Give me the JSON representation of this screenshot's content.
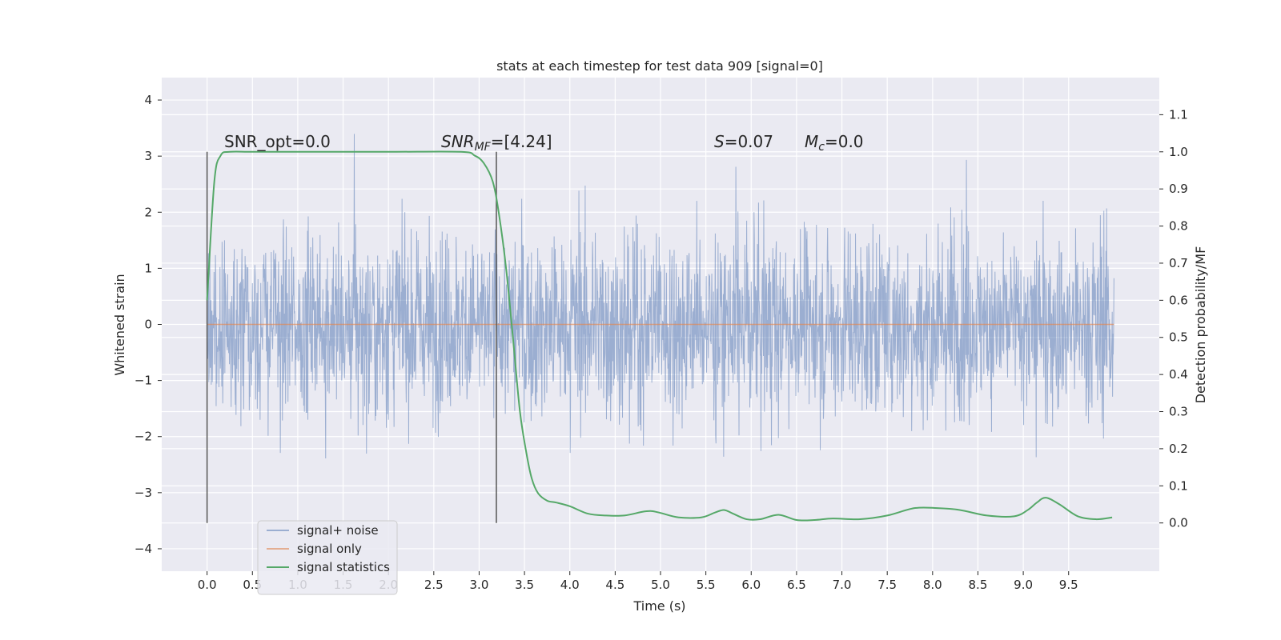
{
  "chart_data": {
    "type": "line",
    "title": "stats at each timestep for test data 909 [signal=0]",
    "xlabel": "Time (s)",
    "ylabel": "Whitened strain",
    "y2label": "Detection probability/MF",
    "xlim": [
      -0.5,
      10.5
    ],
    "ylim": [
      -4.4,
      4.4
    ],
    "y2lim": [
      -0.13,
      1.2
    ],
    "xticks": [
      0.0,
      0.5,
      1.0,
      1.5,
      2.0,
      2.5,
      3.0,
      3.5,
      4.0,
      4.5,
      5.0,
      5.5,
      6.0,
      6.5,
      7.0,
      7.5,
      8.0,
      8.5,
      9.0,
      9.5
    ],
    "xtick_labels": [
      "0.0",
      "0.5",
      "1.0",
      "1.5",
      "2.0",
      "2.5",
      "3.0",
      "3.5",
      "4.0",
      "4.5",
      "5.0",
      "5.5",
      "6.0",
      "6.5",
      "7.0",
      "7.5",
      "8.0",
      "8.5",
      "9.0",
      "9.5"
    ],
    "yticks": [
      -4,
      -3,
      -2,
      -1,
      0,
      1,
      2,
      3,
      4
    ],
    "ytick_labels": [
      "−4",
      "−3",
      "−2",
      "−1",
      "0",
      "1",
      "2",
      "3",
      "4"
    ],
    "y2ticks": [
      0.0,
      0.1,
      0.2,
      0.3,
      0.4,
      0.5,
      0.6,
      0.7,
      0.8,
      0.9,
      1.0,
      1.1
    ],
    "y2tick_labels": [
      "0.0",
      "0.1",
      "0.2",
      "0.3",
      "0.4",
      "0.5",
      "0.6",
      "0.7",
      "0.8",
      "0.9",
      "1.0",
      "1.1"
    ],
    "series": [
      {
        "name": "signal+ noise",
        "color": "#4c72b0",
        "axis": "left",
        "style": "dense noise, roughly ±3.5 amplitude"
      },
      {
        "name": "signal only",
        "color": "#dd8452",
        "axis": "left",
        "x": [
          0.0,
          10.0
        ],
        "y": [
          0.0,
          0.0
        ]
      },
      {
        "name": "signal statistics",
        "color": "#55a868",
        "axis": "right",
        "x": [
          0.0,
          0.08,
          0.15,
          0.25,
          0.5,
          1.0,
          2.0,
          2.8,
          2.95,
          3.05,
          3.15,
          3.22,
          3.3,
          3.38,
          3.45,
          3.52,
          3.58,
          3.65,
          3.75,
          3.85,
          4.0,
          4.2,
          4.4,
          4.6,
          4.8,
          4.9,
          5.0,
          5.2,
          5.45,
          5.6,
          5.7,
          5.8,
          5.95,
          6.1,
          6.3,
          6.5,
          6.7,
          6.9,
          7.2,
          7.5,
          7.8,
          8.05,
          8.3,
          8.6,
          8.9,
          9.05,
          9.15,
          9.25,
          9.4,
          9.6,
          9.8,
          9.98
        ],
        "y": [
          0.6,
          0.92,
          0.99,
          1.0,
          1.0,
          1.0,
          1.0,
          1.0,
          0.99,
          0.97,
          0.92,
          0.83,
          0.68,
          0.48,
          0.3,
          0.19,
          0.12,
          0.08,
          0.06,
          0.055,
          0.045,
          0.025,
          0.02,
          0.02,
          0.03,
          0.032,
          0.027,
          0.015,
          0.015,
          0.028,
          0.035,
          0.025,
          0.01,
          0.01,
          0.022,
          0.008,
          0.008,
          0.012,
          0.01,
          0.02,
          0.04,
          0.04,
          0.035,
          0.02,
          0.018,
          0.035,
          0.055,
          0.068,
          0.05,
          0.018,
          0.01,
          0.015
        ]
      }
    ],
    "vlines": [
      0.0,
      3.19
    ],
    "annotations": {
      "snr_opt": "SNR_opt=0.0",
      "snr_mf_prefix": "SNR",
      "snr_mf_sub": "MF",
      "snr_mf_value": "=[4.24]",
      "s_symbol": "S",
      "s_value": "=0.07",
      "mc_symbol": "M",
      "mc_sub": "c",
      "mc_value": "=0.0"
    },
    "legend": {
      "location": "lower-left",
      "entries": [
        "signal+ noise",
        "signal only",
        "signal statistics"
      ]
    },
    "grid": true
  },
  "colors": {
    "background": "#eaeaf2",
    "grid": "#ffffff",
    "noise": "#4c72b0",
    "signal": "#dd8452",
    "stats": "#55a868",
    "vline": "#555555"
  }
}
